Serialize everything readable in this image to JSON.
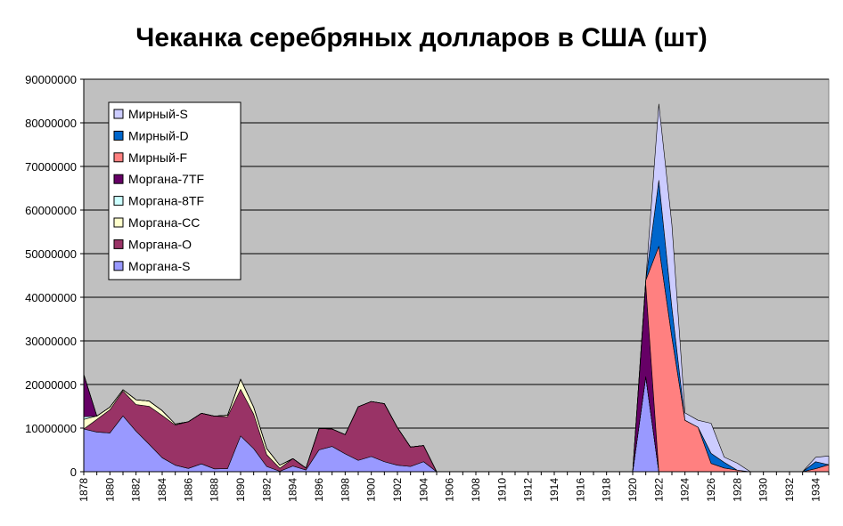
{
  "chart_data": {
    "type": "area",
    "stacked": true,
    "title": "Чеканка серебряных долларов в США (шт)",
    "xlabel": "",
    "ylabel": "",
    "x": [
      1878,
      1879,
      1880,
      1881,
      1882,
      1883,
      1884,
      1885,
      1886,
      1887,
      1888,
      1889,
      1890,
      1891,
      1892,
      1893,
      1894,
      1895,
      1896,
      1897,
      1898,
      1899,
      1900,
      1901,
      1902,
      1903,
      1904,
      1905,
      1906,
      1907,
      1908,
      1909,
      1910,
      1911,
      1912,
      1913,
      1914,
      1915,
      1916,
      1917,
      1918,
      1919,
      1920,
      1921,
      1922,
      1923,
      1924,
      1925,
      1926,
      1927,
      1928,
      1929,
      1930,
      1931,
      1932,
      1933,
      1934,
      1935
    ],
    "x_tick_labels": [
      "1878",
      "1880",
      "1882",
      "1884",
      "1886",
      "1888",
      "1890",
      "1892",
      "1894",
      "1896",
      "1898",
      "1900",
      "1902",
      "1904",
      "1906",
      "1908",
      "1910",
      "1912",
      "1914",
      "1916",
      "1918",
      "1920",
      "1922",
      "1924",
      "1926",
      "1928",
      "1930",
      "1932",
      "1934"
    ],
    "y_ticks": [
      "0",
      "10000000",
      "20000000",
      "30000000",
      "40000000",
      "50000000",
      "60000000",
      "70000000",
      "80000000",
      "90000000"
    ],
    "ylim": [
      0,
      90000000
    ],
    "grid": true,
    "legend_position": "top-left",
    "series": [
      {
        "name": "Моргана-S",
        "color": "#9999ff",
        "values": [
          9800000,
          9100000,
          8900000,
          12800000,
          9300000,
          6300000,
          3200000,
          1500000,
          750000,
          1800000,
          650000,
          700000,
          8200000,
          5300000,
          1200000,
          100000,
          1300000,
          400000,
          5000000,
          5800000,
          4100000,
          2600000,
          3500000,
          2300000,
          1500000,
          1200000,
          2300000,
          0,
          0,
          0,
          0,
          0,
          0,
          0,
          0,
          0,
          0,
          0,
          0,
          0,
          0,
          0,
          0,
          21800000,
          0,
          0,
          0,
          0,
          0,
          0,
          0,
          0,
          0,
          0,
          0,
          0,
          0,
          0
        ]
      },
      {
        "name": "Моргана-O",
        "color": "#993366",
        "values": [
          0,
          2900000,
          5300000,
          5700000,
          6100000,
          8700000,
          9700000,
          9200000,
          10700000,
          11600000,
          12100000,
          11900000,
          10700000,
          7900000,
          2700000,
          700000,
          1700000,
          450000,
          4900000,
          4000000,
          4400000,
          12300000,
          12600000,
          13300000,
          8600000,
          4450000,
          3700000,
          0,
          0,
          0,
          0,
          0,
          0,
          0,
          0,
          0,
          0,
          0,
          0,
          0,
          0,
          0,
          0,
          0,
          0,
          0,
          0,
          0,
          0,
          0,
          0,
          0,
          0,
          0,
          0,
          0,
          0,
          0
        ]
      },
      {
        "name": "Моргана-CC",
        "color": "#ffffcc",
        "values": [
          2200000,
          750000,
          600000,
          300000,
          1100000,
          1200000,
          1100000,
          230000,
          0,
          0,
          0,
          350000,
          2300000,
          1600000,
          1400000,
          680000,
          0,
          0,
          0,
          0,
          0,
          0,
          0,
          0,
          0,
          0,
          0,
          0,
          0,
          0,
          0,
          0,
          0,
          0,
          0,
          0,
          0,
          0,
          0,
          0,
          0,
          0,
          0,
          0,
          0,
          0,
          0,
          0,
          0,
          0,
          0,
          0,
          0,
          0,
          0,
          0,
          0,
          0
        ]
      },
      {
        "name": "Моргана-8TF",
        "color": "#ccffff",
        "values": [
          600000,
          0,
          0,
          0,
          0,
          0,
          0,
          0,
          0,
          0,
          0,
          0,
          0,
          0,
          0,
          0,
          0,
          0,
          0,
          0,
          0,
          0,
          0,
          0,
          0,
          0,
          0,
          0,
          0,
          0,
          0,
          0,
          0,
          0,
          0,
          0,
          0,
          0,
          0,
          0,
          0,
          0,
          0,
          0,
          0,
          0,
          0,
          0,
          0,
          0,
          0,
          0,
          0,
          0,
          0,
          0,
          0,
          0
        ]
      },
      {
        "name": "Моргана-7TF",
        "color": "#660066",
        "values": [
          9700000,
          0,
          0,
          0,
          0,
          0,
          0,
          0,
          0,
          0,
          0,
          0,
          0,
          0,
          0,
          0,
          0,
          0,
          0,
          0,
          0,
          0,
          0,
          0,
          0,
          0,
          0,
          0,
          0,
          0,
          0,
          0,
          0,
          0,
          0,
          0,
          0,
          0,
          0,
          0,
          0,
          0,
          0,
          21100000,
          0,
          0,
          0,
          0,
          0,
          0,
          0,
          0,
          0,
          0,
          0,
          0,
          0,
          0
        ]
      },
      {
        "name": "Мирный-F",
        "color": "#ff8080",
        "values": [
          0,
          0,
          0,
          0,
          0,
          0,
          0,
          0,
          0,
          0,
          0,
          0,
          0,
          0,
          0,
          0,
          0,
          0,
          0,
          0,
          0,
          0,
          0,
          0,
          0,
          0,
          0,
          0,
          0,
          0,
          0,
          0,
          0,
          0,
          0,
          0,
          0,
          0,
          0,
          0,
          0,
          0,
          0,
          1000000,
          51700000,
          30800000,
          11800000,
          10200000,
          1900000,
          850000,
          360000,
          0,
          0,
          0,
          0,
          0,
          700000,
          1600000
        ]
      },
      {
        "name": "Мирный-D",
        "color": "#0066cc",
        "values": [
          0,
          0,
          0,
          0,
          0,
          0,
          0,
          0,
          0,
          0,
          0,
          0,
          0,
          0,
          0,
          0,
          0,
          0,
          0,
          0,
          0,
          0,
          0,
          0,
          0,
          0,
          0,
          0,
          0,
          0,
          0,
          0,
          0,
          0,
          0,
          0,
          0,
          0,
          0,
          0,
          0,
          0,
          0,
          0,
          15100000,
          6800000,
          0,
          0,
          2300000,
          1300000,
          0,
          0,
          0,
          0,
          0,
          0,
          1600000,
          0
        ]
      },
      {
        "name": "Мирный-S",
        "color": "#ccccff",
        "values": [
          0,
          0,
          0,
          0,
          0,
          0,
          0,
          0,
          0,
          0,
          0,
          0,
          0,
          0,
          0,
          0,
          0,
          0,
          0,
          0,
          0,
          0,
          0,
          0,
          0,
          0,
          0,
          0,
          0,
          0,
          0,
          0,
          0,
          0,
          0,
          0,
          0,
          0,
          0,
          0,
          0,
          0,
          0,
          0,
          17500000,
          19000000,
          1700000,
          1600000,
          6900000,
          1200000,
          1600000,
          0,
          0,
          0,
          0,
          0,
          1000000,
          2000000
        ]
      }
    ],
    "legend_order": [
      "Мирный-S",
      "Мирный-D",
      "Мирный-F",
      "Моргана-7TF",
      "Моргана-8TF",
      "Моргана-CC",
      "Моргана-O",
      "Моргана-S"
    ],
    "plot_background": "#c0c0c0"
  }
}
